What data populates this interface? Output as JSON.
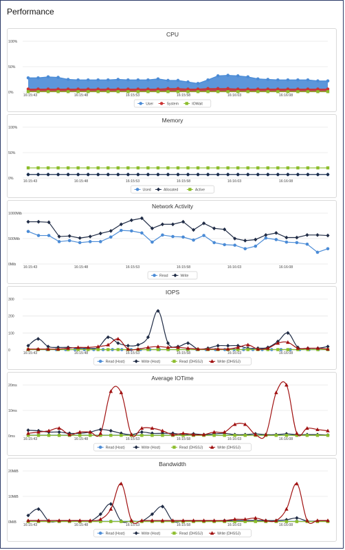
{
  "page": {
    "title": "Performance"
  },
  "colors": {
    "blue": "#4a8bd6",
    "navy": "#1f2b45",
    "red": "#cc3333",
    "green": "#8cbd2c",
    "darkred": "#a01010",
    "grid": "#e6e6e6",
    "text": "#444444"
  },
  "chart_data": [
    {
      "type": "area",
      "title": "CPU",
      "y_ticks": [
        "100%",
        "50%",
        "0%"
      ],
      "ylim": [
        0,
        100
      ],
      "x_labels": [
        "16:15:43",
        "16:15:48",
        "16:15:53",
        "16:15:58",
        "16:16:03",
        "16:16:08"
      ],
      "grid": true,
      "legend_position": "bottom",
      "series": [
        {
          "name": "User",
          "color": "#4a8bd6",
          "marker": "circle",
          "fill": true,
          "values": [
            28,
            28,
            30,
            29,
            25,
            24,
            24,
            24,
            24,
            25,
            24,
            24,
            24,
            26,
            23,
            23,
            20,
            17,
            24,
            32,
            33,
            32,
            30,
            26,
            25,
            24,
            24,
            24,
            24,
            22,
            22
          ]
        },
        {
          "name": "System",
          "color": "#cc3333",
          "marker": "circle",
          "fill": true,
          "values": [
            6,
            6,
            6,
            6,
            6,
            6,
            6,
            6,
            6,
            6,
            6,
            6,
            6,
            6,
            7,
            7,
            6,
            6,
            7,
            7,
            7,
            6,
            6,
            6,
            6,
            6,
            6,
            6,
            6,
            6,
            6
          ]
        },
        {
          "name": "IOWait",
          "color": "#8cbd2c",
          "marker": "square",
          "fill": false,
          "values": [
            1,
            1,
            1,
            1,
            1,
            1,
            1,
            1,
            1,
            1,
            1,
            1,
            1,
            1,
            1,
            1,
            1,
            1,
            1,
            1,
            1,
            1,
            1,
            1,
            1,
            1,
            1,
            1,
            1,
            1,
            1
          ]
        }
      ]
    },
    {
      "type": "line",
      "title": "Memory",
      "y_ticks": [
        "100%",
        "50%",
        "0%"
      ],
      "ylim": [
        0,
        100
      ],
      "x_labels": [
        "16:15:43",
        "16:15:48",
        "16:15:53",
        "16:15:58",
        "16:16:03",
        "16:16:08"
      ],
      "grid": true,
      "legend_position": "bottom",
      "series": [
        {
          "name": "Used",
          "color": "#4a8bd6",
          "marker": "circle",
          "values": [
            7,
            7,
            7,
            7,
            7,
            7,
            7,
            7,
            7,
            7,
            7,
            7,
            7,
            7,
            7,
            7,
            7,
            7,
            7,
            7,
            7,
            7,
            7,
            7,
            7,
            7,
            7,
            7,
            7,
            7,
            7
          ]
        },
        {
          "name": "Allocated",
          "color": "#1f2b45",
          "marker": "diamond",
          "values": [
            7,
            7,
            7,
            7,
            7,
            7,
            7,
            7,
            7,
            7,
            7,
            7,
            7,
            7,
            7,
            7,
            7,
            7,
            7,
            7,
            7,
            7,
            7,
            7,
            7,
            7,
            7,
            7,
            7,
            7,
            7
          ]
        },
        {
          "name": "Active",
          "color": "#8cbd2c",
          "marker": "square",
          "values": [
            20,
            20,
            20,
            20,
            20,
            20,
            20,
            20,
            20,
            20,
            20,
            20,
            20,
            20,
            20,
            20,
            20,
            20,
            20,
            20,
            20,
            20,
            20,
            20,
            20,
            20,
            20,
            20,
            20,
            20,
            20
          ]
        }
      ]
    },
    {
      "type": "line",
      "title": "Network Activity",
      "y_ticks": [
        "1000Mib",
        "500Mib",
        "0Mib"
      ],
      "ylim": [
        0,
        1000
      ],
      "x_labels": [
        "16:15:43",
        "16:15:48",
        "16:15:53",
        "16:15:58",
        "16:16:03",
        "16:16:08"
      ],
      "grid": true,
      "legend_position": "bottom",
      "series": [
        {
          "name": "Read",
          "color": "#4a8bd6",
          "marker": "circle",
          "values": [
            640,
            560,
            560,
            440,
            460,
            420,
            440,
            440,
            530,
            660,
            650,
            610,
            430,
            570,
            540,
            530,
            470,
            560,
            420,
            380,
            370,
            300,
            350,
            510,
            480,
            430,
            420,
            390,
            230,
            300
          ]
        },
        {
          "name": "Write",
          "color": "#1f2b45",
          "marker": "diamond",
          "values": [
            830,
            830,
            820,
            540,
            550,
            510,
            540,
            600,
            650,
            780,
            860,
            900,
            700,
            780,
            780,
            830,
            670,
            800,
            700,
            680,
            500,
            460,
            480,
            570,
            610,
            520,
            520,
            570,
            570,
            560
          ]
        }
      ]
    },
    {
      "type": "line",
      "title": "IOPS",
      "y_ticks": [
        "300",
        "200",
        "100",
        "0"
      ],
      "ylim": [
        0,
        300
      ],
      "x_labels": [
        "16:15:43",
        "16:15:48",
        "16:15:53",
        "16:15:58",
        "16:16:03",
        "16:16:08"
      ],
      "grid": true,
      "legend_position": "bottom",
      "series": [
        {
          "name": "Read (Host)",
          "color": "#4a8bd6",
          "marker": "circle",
          "values": [
            2,
            2,
            2,
            2,
            2,
            2,
            2,
            2,
            2,
            2,
            2,
            2,
            2,
            2,
            2,
            2,
            2,
            2,
            2,
            2,
            2,
            2,
            2,
            2,
            2,
            2,
            2,
            2,
            2,
            2,
            2,
            2,
            2
          ]
        },
        {
          "name": "Write (Host)",
          "color": "#1f2b45",
          "marker": "diamond",
          "values": [
            25,
            65,
            20,
            15,
            15,
            10,
            10,
            15,
            75,
            40,
            25,
            30,
            75,
            230,
            40,
            20,
            40,
            5,
            10,
            25,
            25,
            25,
            10,
            10,
            15,
            50,
            100,
            15,
            10,
            10,
            20
          ]
        },
        {
          "name": "Read (DHSSJ)",
          "color": "#8cbd2c",
          "marker": "square",
          "values": [
            2,
            2,
            2,
            2,
            2,
            2,
            2,
            2,
            2,
            2,
            2,
            2,
            2,
            2,
            2,
            2,
            2,
            2,
            2,
            2,
            2,
            2,
            2,
            2,
            2,
            2,
            2,
            2,
            2,
            2,
            2
          ]
        },
        {
          "name": "Write (DHSSJ)",
          "color": "#a01010",
          "marker": "triangle",
          "values": [
            5,
            5,
            5,
            5,
            10,
            15,
            15,
            20,
            30,
            65,
            5,
            5,
            15,
            20,
            15,
            15,
            10,
            5,
            5,
            5,
            5,
            15,
            30,
            5,
            10,
            40,
            45,
            10,
            10,
            10,
            5
          ]
        }
      ]
    },
    {
      "type": "line",
      "title": "Average IOTime",
      "y_ticks": [
        "20ms",
        "10ms",
        "0ms"
      ],
      "ylim": [
        0,
        20
      ],
      "x_labels": [
        "16:15:43",
        "16:15:48",
        "16:15:53",
        "16:15:58",
        "16:16:03",
        "16:16:08"
      ],
      "grid": true,
      "legend_position": "bottom",
      "series": [
        {
          "name": "Read (Host)",
          "color": "#4a8bd6",
          "marker": "circle",
          "values": [
            0.3,
            0.3,
            0.3,
            0.3,
            0.3,
            0.3,
            0.3,
            0.3,
            0.3,
            0.3,
            0.3,
            0.3,
            0.3,
            0.3,
            0.3,
            0.3,
            0.3,
            0.3,
            0.3,
            0.3,
            0.3,
            0.3,
            0.3,
            0.3,
            0.3,
            0.3,
            0.3,
            0.3,
            0.3,
            0.3
          ]
        },
        {
          "name": "Write (Host)",
          "color": "#1f2b45",
          "marker": "diamond",
          "values": [
            2.2,
            2,
            1.5,
            1.5,
            1,
            1,
            1.5,
            2.5,
            2,
            1,
            0.5,
            1.5,
            1,
            1,
            1,
            0.5,
            0.8,
            0.5,
            0.8,
            1,
            0.5,
            0.5,
            0.8,
            0.5,
            0.5,
            0.8,
            0.5,
            0.5,
            0.5,
            0.3
          ]
        },
        {
          "name": "Read (DHSSJ)",
          "color": "#8cbd2c",
          "marker": "square",
          "values": [
            0.2,
            0.2,
            0.2,
            0.2,
            0.2,
            0.2,
            0.2,
            0.2,
            0.2,
            0.2,
            0.2,
            0.2,
            0.2,
            0.2,
            0.2,
            0.2,
            0.2,
            0.2,
            0.2,
            0.2,
            0.2,
            0.2,
            0.2,
            0.2,
            0.2,
            0.2,
            0.2,
            0.2,
            0.2,
            0.2
          ]
        },
        {
          "name": "Write (DHSSJ)",
          "color": "#a01010",
          "marker": "triangle",
          "values": [
            1,
            1.5,
            2,
            3,
            0.5,
            1.5,
            1.5,
            1,
            17.5,
            17,
            0.5,
            3,
            3,
            2,
            0.5,
            1,
            0.5,
            0.5,
            1.5,
            1.5,
            4.5,
            4.5,
            0.5,
            0.5,
            17,
            20,
            1,
            3,
            2.5,
            2
          ]
        }
      ]
    },
    {
      "type": "line",
      "title": "Bandwidth",
      "y_ticks": [
        "20MiB",
        "10MiB",
        "0MiB"
      ],
      "ylim": [
        0,
        20
      ],
      "x_labels": [
        "16:15:43",
        "16:15:48",
        "16:15:53",
        "16:15:58",
        "16:16:03",
        "16:16:08"
      ],
      "grid": true,
      "legend_position": "bottom",
      "series": [
        {
          "name": "Read (Host)",
          "color": "#4a8bd6",
          "marker": "circle",
          "values": [
            0.2,
            0.2,
            0.2,
            0.2,
            0.2,
            0.2,
            0.2,
            0.2,
            0.2,
            0.2,
            0.2,
            0.2,
            0.2,
            0.2,
            0.2,
            0.2,
            0.2,
            0.2,
            0.2,
            0.2,
            0.2,
            0.2,
            0.2,
            0.2,
            0.2,
            0.2,
            0.2,
            0.2,
            0.2,
            0.2
          ]
        },
        {
          "name": "Write (Host)",
          "color": "#1f2b45",
          "marker": "diamond",
          "values": [
            2.5,
            5,
            0.3,
            0.3,
            0.3,
            0.3,
            0.3,
            3,
            7,
            0.3,
            0.3,
            0.3,
            3,
            6,
            0.3,
            0.3,
            0.3,
            0.3,
            0.3,
            0.5,
            0.5,
            0.5,
            0.5,
            0.5,
            0.5,
            0.8,
            1.5,
            0.3,
            0.3,
            0.3
          ]
        },
        {
          "name": "Read (DHSSJ)",
          "color": "#8cbd2c",
          "marker": "square",
          "values": [
            0.1,
            0.1,
            0.1,
            0.1,
            0.1,
            0.1,
            0.1,
            0.1,
            0.1,
            0.1,
            0.1,
            0.1,
            0.1,
            0.1,
            0.1,
            0.1,
            0.1,
            0.1,
            0.1,
            0.1,
            0.1,
            0.1,
            0.1,
            0.1,
            0.1,
            0.1,
            0.1,
            0.1,
            0.1,
            0.1
          ]
        },
        {
          "name": "Write (DHSSJ)",
          "color": "#a01010",
          "marker": "triangle",
          "values": [
            0.5,
            0.5,
            0.5,
            0.5,
            0.5,
            0.5,
            0.5,
            1,
            5,
            15,
            0.5,
            0.5,
            0.5,
            0.5,
            0.5,
            0.5,
            0.5,
            0.5,
            0.5,
            0.5,
            1,
            1,
            1.5,
            0.5,
            0.5,
            5,
            15,
            0.5,
            0.5,
            0.5
          ]
        }
      ]
    }
  ]
}
